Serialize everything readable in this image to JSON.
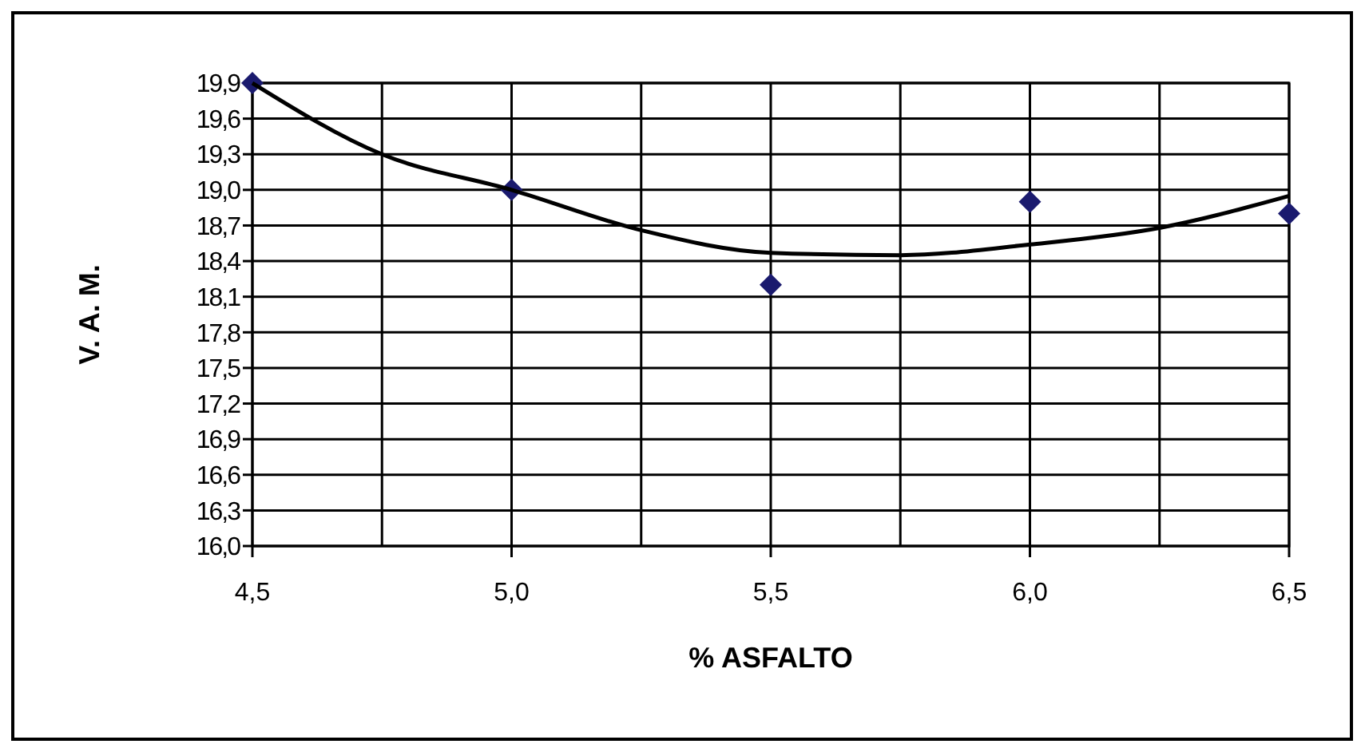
{
  "chart_data": {
    "type": "scatter",
    "xlabel": "% ASFALTO",
    "ylabel": "V. A. M.",
    "grid": true,
    "marker": "diamond",
    "xlim": [
      4.5,
      6.5
    ],
    "xticks": [
      {
        "value": 4.5,
        "label": "4,5"
      },
      {
        "value": 4.75,
        "label": null
      },
      {
        "value": 5.0,
        "label": "5,0"
      },
      {
        "value": 5.25,
        "label": null
      },
      {
        "value": 5.5,
        "label": "5,5"
      },
      {
        "value": 5.75,
        "label": null
      },
      {
        "value": 6.0,
        "label": "6,0"
      },
      {
        "value": 6.25,
        "label": null
      },
      {
        "value": 6.5,
        "label": "6,5"
      }
    ],
    "ylim": [
      16.0,
      19.9
    ],
    "yticks": [
      {
        "value": 16.0,
        "label": "16,0"
      },
      {
        "value": 16.3,
        "label": "16,3"
      },
      {
        "value": 16.6,
        "label": "16,6"
      },
      {
        "value": 16.9,
        "label": "16,9"
      },
      {
        "value": 17.2,
        "label": "17,2"
      },
      {
        "value": 17.5,
        "label": "17,5"
      },
      {
        "value": 17.8,
        "label": "17,8"
      },
      {
        "value": 18.1,
        "label": "18,1"
      },
      {
        "value": 18.4,
        "label": "18,4"
      },
      {
        "value": 18.7,
        "label": "18,7"
      },
      {
        "value": 19.0,
        "label": "19,0"
      },
      {
        "value": 19.3,
        "label": "19,3"
      },
      {
        "value": 19.6,
        "label": "19,6"
      },
      {
        "value": 19.9,
        "label": "19,9"
      }
    ],
    "series": [
      {
        "color": "#1a1a6e",
        "x": [
          4.5,
          5.0,
          5.5,
          6.0,
          6.5
        ],
        "values": [
          19.9,
          19.0,
          18.2,
          18.9,
          18.8
        ]
      },
      {
        "type": "line",
        "color": "#000000",
        "marker": "none",
        "x": [
          4.5,
          4.75,
          5.0,
          5.25,
          5.5,
          5.75,
          6.0,
          6.25,
          6.5
        ],
        "values": [
          19.9,
          19.3,
          19.0,
          18.66,
          18.47,
          18.45,
          18.54,
          18.68,
          18.95
        ]
      }
    ]
  }
}
